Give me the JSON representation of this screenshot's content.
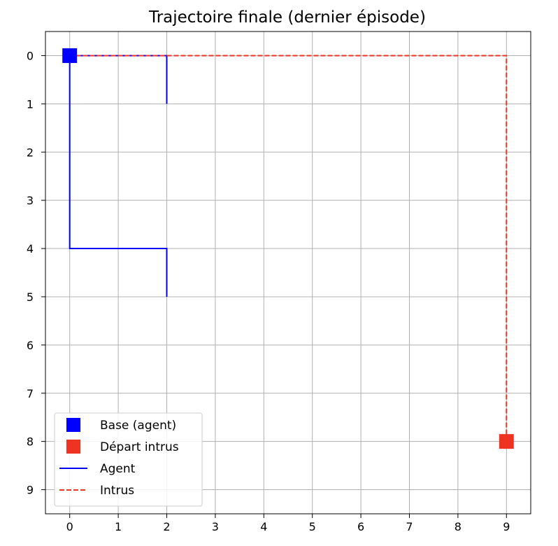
{
  "chart_data": {
    "type": "line",
    "title": "Trajectoire finale (dernier épisode)",
    "xlabel": "",
    "ylabel": "",
    "xlim": [
      -0.5,
      9.5
    ],
    "ylim": [
      9.5,
      -0.5
    ],
    "y_inverted": true,
    "x_ticks": [
      "0",
      "1",
      "2",
      "3",
      "4",
      "5",
      "6",
      "7",
      "8",
      "9"
    ],
    "y_ticks": [
      "0",
      "1",
      "2",
      "3",
      "4",
      "5",
      "6",
      "7",
      "8",
      "9"
    ],
    "grid": true,
    "legend_position": "lower-left",
    "series": [
      {
        "name": "Base (agent)",
        "kind": "marker",
        "marker": "square",
        "color": "#0000ff",
        "points": [
          {
            "x": 0,
            "y": 0
          }
        ]
      },
      {
        "name": "Départ intrus",
        "kind": "marker",
        "marker": "square",
        "color": "#ee3322",
        "points": [
          {
            "x": 9,
            "y": 8
          }
        ]
      },
      {
        "name": "Agent",
        "kind": "line",
        "style": "solid",
        "color": "#0000ff",
        "points": [
          {
            "x": 2,
            "y": 1
          },
          {
            "x": 2,
            "y": 0
          },
          {
            "x": 0,
            "y": 0
          },
          {
            "x": 0,
            "y": 4
          },
          {
            "x": 2,
            "y": 4
          },
          {
            "x": 2,
            "y": 5
          }
        ]
      },
      {
        "name": "Intrus",
        "kind": "line",
        "style": "dashed",
        "color": "#ee3322",
        "points": [
          {
            "x": 9,
            "y": 8
          },
          {
            "x": 9,
            "y": 0
          },
          {
            "x": 0,
            "y": 0
          }
        ]
      }
    ]
  }
}
